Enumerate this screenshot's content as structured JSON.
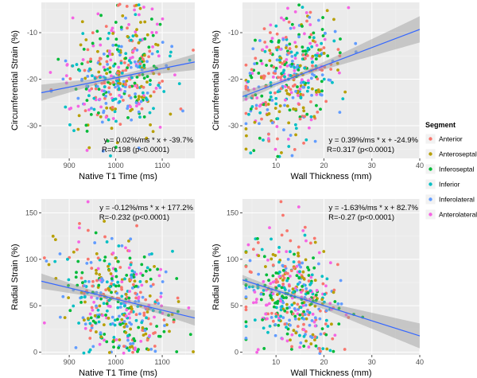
{
  "legend": {
    "title": "Segment",
    "entries": [
      {
        "label": "Anterior",
        "color": "#f8766d"
      },
      {
        "label": "Anteroseptal",
        "color": "#b79f00"
      },
      {
        "label": "Inferoseptal",
        "color": "#00ba38"
      },
      {
        "label": "Inferior",
        "color": "#00bfc4"
      },
      {
        "label": "Inferolateral",
        "color": "#619cff"
      },
      {
        "label": "Anterolateral",
        "color": "#f564e3"
      }
    ]
  },
  "chart_data": [
    {
      "type": "scatter",
      "xlabel": "Native T1 Time (ms)",
      "ylabel": "Circumferential Strain (%)",
      "xlim": [
        840,
        1170
      ],
      "ylim": [
        -37,
        -3.5
      ],
      "xticks": [
        900,
        1000,
        1100
      ],
      "yticks": [
        -30,
        -20,
        -10
      ],
      "equation": "y = 0.02%/ms * x + -39.7%",
      "stat": "R=0.198 (p<0.0001)",
      "fit": {
        "slope": 0.02,
        "intercept": -39.7
      },
      "seed": 11,
      "n": 420,
      "x_center": 1005,
      "x_sd": 55,
      "y_noise_sd": 6.8
    },
    {
      "type": "scatter",
      "xlabel": "Wall Thickness (mm)",
      "ylabel": "Circumferential Strain (%)",
      "xlim": [
        3,
        40
      ],
      "ylim": [
        -37,
        -3.5
      ],
      "xticks": [
        10,
        20,
        30,
        40
      ],
      "yticks": [
        -30,
        -20,
        -10
      ],
      "equation": "y = 0.39%/ms * x + -24.9%",
      "stat": "R=0.317 (p<0.0001)",
      "fit": {
        "slope": 0.39,
        "intercept": -24.9
      },
      "seed": 23,
      "n": 420,
      "x_center": 13,
      "x_sd": 5,
      "y_noise_sd": 6.3
    },
    {
      "type": "scatter",
      "xlabel": "Native T1 Time (ms)",
      "ylabel": "Radial Strain (%)",
      "xlim": [
        840,
        1170
      ],
      "ylim": [
        -3,
        165
      ],
      "xticks": [
        900,
        1000,
        1100
      ],
      "yticks": [
        0,
        50,
        100,
        150
      ],
      "equation": "y = -0.12%/ms * x + 177.2%",
      "stat": "R=-0.232 (p<0.0001)",
      "fit": {
        "slope": -0.12,
        "intercept": 177.2
      },
      "seed": 37,
      "n": 420,
      "x_center": 1005,
      "x_sd": 55,
      "y_noise_sd": 32
    },
    {
      "type": "scatter",
      "xlabel": "Wall Thickness (mm)",
      "ylabel": "Radial Strain (%)",
      "xlim": [
        3,
        40
      ],
      "ylim": [
        -3,
        165
      ],
      "xticks": [
        10,
        20,
        30,
        40
      ],
      "yticks": [
        0,
        50,
        100,
        150
      ],
      "equation": "y = -1.63%/ms * x + 82.7%",
      "stat": "R=-0.27 (p<0.0001)",
      "fit": {
        "slope": -1.63,
        "intercept": 82.7
      },
      "seed": 53,
      "n": 420,
      "x_center": 13,
      "x_sd": 5,
      "y_noise_sd": 30
    }
  ]
}
